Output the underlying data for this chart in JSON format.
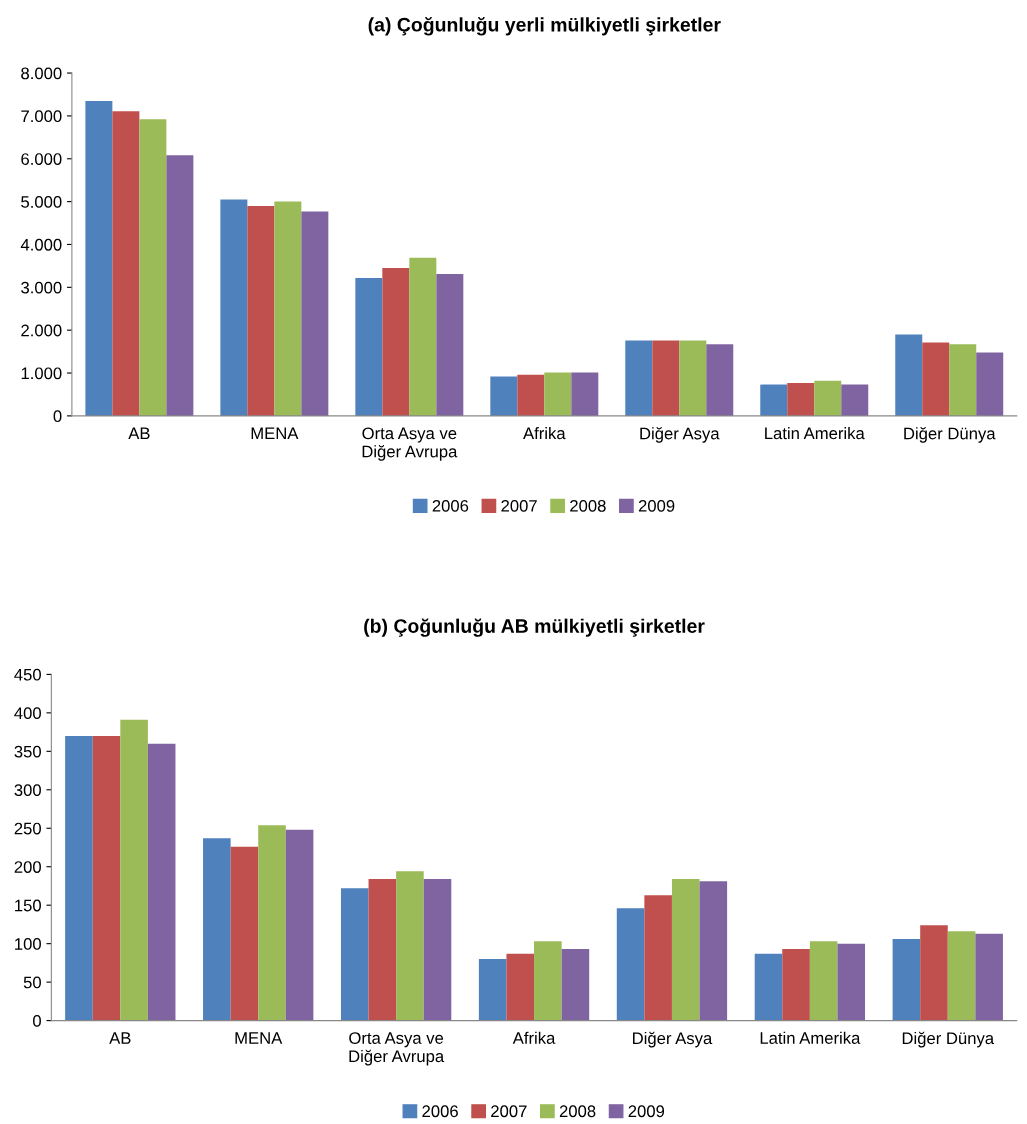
{
  "chart_data": [
    {
      "type": "bar",
      "title": "(a) Çoğunluğu yerli mülkiyetli şirketler",
      "categories": [
        "AB",
        "MENA",
        "Orta Asya ve\nDiğer Avrupa",
        "Afrika",
        "Diğer Asya",
        "Latin Amerika",
        "Diğer Dünya"
      ],
      "series": [
        {
          "name": "2006",
          "color": "#4f81bd",
          "values": [
            7350,
            5050,
            3220,
            920,
            1760,
            730,
            1900
          ]
        },
        {
          "name": "2007",
          "color": "#c0504d",
          "values": [
            7110,
            4900,
            3450,
            960,
            1760,
            770,
            1710
          ]
        },
        {
          "name": "2008",
          "color": "#9bbb59",
          "values": [
            6920,
            5000,
            3690,
            1010,
            1760,
            820,
            1670
          ]
        },
        {
          "name": "2009",
          "color": "#8064a2",
          "values": [
            6080,
            4770,
            3310,
            1010,
            1670,
            730,
            1480
          ]
        }
      ],
      "ylim": [
        0,
        8000
      ],
      "yticks": [
        0,
        {
          "value": 1000,
          "label": "1.000"
        },
        {
          "value": 2000,
          "label": "2.000"
        },
        {
          "value": 3000,
          "label": "3.000"
        },
        {
          "value": 4000,
          "label": "4.000"
        },
        {
          "value": 5000,
          "label": "5.000"
        },
        {
          "value": 6000,
          "label": "6.000"
        },
        {
          "value": 7000,
          "label": "7.000"
        },
        {
          "value": 8000,
          "label": "8.000"
        }
      ],
      "grid": false,
      "legend": "bottom"
    },
    {
      "type": "bar",
      "title": "(b) Çoğunluğu AB mülkiyetli şirketler",
      "categories": [
        "AB",
        "MENA",
        "Orta Asya ve\nDiğer Avrupa",
        "Afrika",
        "Diğer Asya",
        "Latin Amerika",
        "Diğer Dünya"
      ],
      "series": [
        {
          "name": "2006",
          "color": "#4f81bd",
          "values": [
            370,
            237,
            172,
            80,
            146,
            87,
            106
          ]
        },
        {
          "name": "2007",
          "color": "#c0504d",
          "values": [
            370,
            226,
            184,
            87,
            163,
            93,
            124
          ]
        },
        {
          "name": "2008",
          "color": "#9bbb59",
          "values": [
            391,
            254,
            194,
            103,
            184,
            103,
            116
          ]
        },
        {
          "name": "2009",
          "color": "#8064a2",
          "values": [
            360,
            248,
            184,
            93,
            181,
            100,
            113
          ]
        }
      ],
      "ylim": [
        0,
        450
      ],
      "yticks": [
        0,
        50,
        100,
        150,
        200,
        250,
        300,
        350,
        400,
        450
      ],
      "grid": false,
      "legend": "bottom"
    }
  ]
}
